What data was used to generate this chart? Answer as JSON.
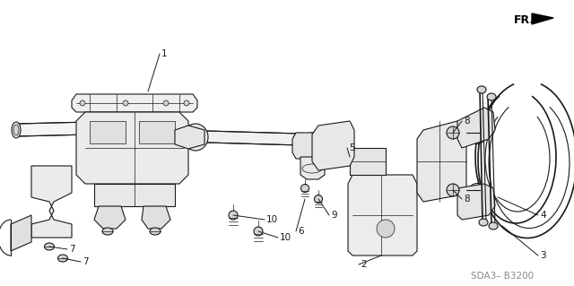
{
  "bg_color": "#ffffff",
  "line_color": "#1a1a1a",
  "text_color": "#1a1a1a",
  "footer_text": "SDA3– B3200",
  "fr_label": "FR.",
  "figsize": [
    6.4,
    3.19
  ],
  "dpi": 100,
  "label_fontsize": 7.5,
  "footer_fontsize": 7.5
}
